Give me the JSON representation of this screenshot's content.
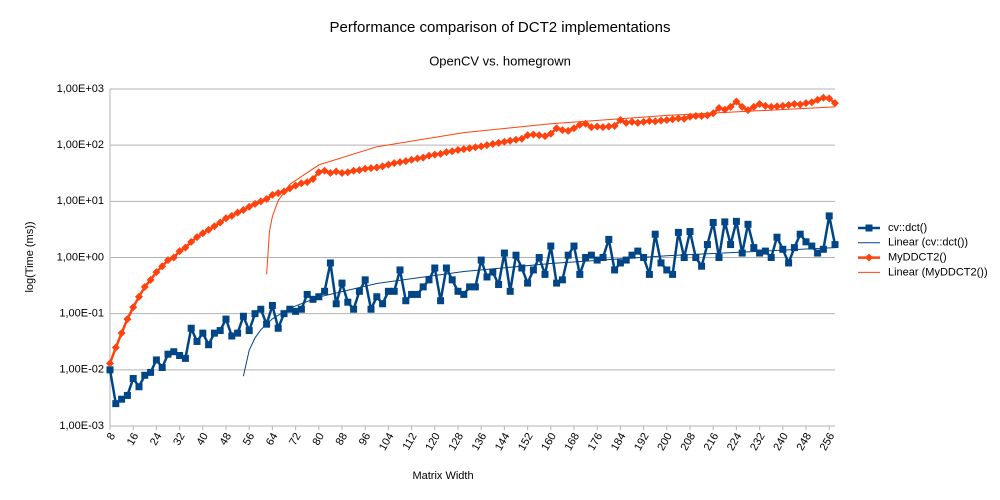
{
  "chart_data": {
    "type": "line",
    "title": "Performance comparison of DCT2 implementations",
    "subtitle": "OpenCV vs. homegrown",
    "x_label": "Matrix Width",
    "y_label": "log(Time (ms))",
    "log_y": true,
    "grid": true,
    "legend": "right",
    "xlim": [
      8,
      258
    ],
    "xticks": [
      8,
      16,
      24,
      32,
      40,
      48,
      56,
      64,
      72,
      80,
      88,
      96,
      104,
      112,
      120,
      128,
      136,
      144,
      152,
      160,
      168,
      176,
      184,
      192,
      200,
      208,
      216,
      224,
      232,
      240,
      248,
      256
    ],
    "ylim": [
      0.001,
      1000
    ],
    "yticks": [
      {
        "value": 0.001,
        "label": "1,00E-03"
      },
      {
        "value": 0.01,
        "label": "1,00E-02"
      },
      {
        "value": 0.1,
        "label": "1,00E-01"
      },
      {
        "value": 1,
        "label": "1,00E+00"
      },
      {
        "value": 10,
        "label": "1,00E+01"
      },
      {
        "value": 100,
        "label": "1,00E+02"
      },
      {
        "value": 1000,
        "label": "1,00E+03"
      }
    ],
    "x": [
      8,
      10,
      12,
      14,
      16,
      18,
      20,
      22,
      24,
      26,
      28,
      30,
      32,
      34,
      36,
      38,
      40,
      42,
      44,
      46,
      48,
      50,
      52,
      54,
      56,
      58,
      60,
      62,
      64,
      66,
      68,
      70,
      72,
      74,
      76,
      78,
      80,
      82,
      84,
      86,
      88,
      90,
      92,
      94,
      96,
      98,
      100,
      102,
      104,
      106,
      108,
      110,
      112,
      114,
      116,
      118,
      120,
      122,
      124,
      126,
      128,
      130,
      132,
      134,
      136,
      138,
      140,
      142,
      144,
      146,
      148,
      150,
      152,
      154,
      156,
      158,
      160,
      162,
      164,
      166,
      168,
      170,
      172,
      174,
      176,
      178,
      180,
      182,
      184,
      186,
      188,
      190,
      192,
      194,
      196,
      198,
      200,
      202,
      204,
      206,
      208,
      210,
      212,
      214,
      216,
      218,
      220,
      222,
      224,
      226,
      228,
      230,
      232,
      234,
      236,
      238,
      240,
      242,
      244,
      246,
      248,
      250,
      252,
      254,
      256,
      258
    ],
    "series": [
      {
        "name": "cv::dct()",
        "color": "#004586",
        "marker": "square",
        "values": [
          0.01,
          0.0025,
          0.003,
          0.0035,
          0.007,
          0.005,
          0.008,
          0.009,
          0.015,
          0.011,
          0.019,
          0.021,
          0.018,
          0.016,
          0.055,
          0.032,
          0.045,
          0.028,
          0.045,
          0.05,
          0.08,
          0.04,
          0.045,
          0.09,
          0.05,
          0.1,
          0.12,
          0.065,
          0.14,
          0.055,
          0.1,
          0.12,
          0.11,
          0.12,
          0.22,
          0.18,
          0.2,
          0.25,
          0.8,
          0.15,
          0.35,
          0.16,
          0.12,
          0.25,
          0.4,
          0.12,
          0.2,
          0.15,
          0.25,
          0.25,
          0.6,
          0.17,
          0.22,
          0.22,
          0.3,
          0.4,
          0.65,
          0.17,
          0.65,
          0.4,
          0.25,
          0.22,
          0.3,
          0.3,
          0.9,
          0.45,
          0.55,
          0.33,
          1.2,
          0.25,
          1.1,
          0.65,
          0.35,
          0.6,
          1.0,
          0.5,
          1.6,
          0.35,
          0.4,
          1.1,
          1.6,
          0.5,
          1.0,
          1.1,
          0.9,
          1.0,
          2.1,
          0.6,
          0.8,
          0.9,
          1.1,
          1.3,
          1.0,
          0.5,
          2.6,
          0.8,
          0.6,
          0.5,
          2.8,
          1.0,
          2.9,
          1.0,
          0.7,
          1.7,
          4.2,
          1.0,
          4.3,
          1.7,
          4.4,
          1.2,
          3.9,
          1.5,
          1.2,
          1.3,
          1.0,
          2.3,
          1.4,
          0.8,
          1.5,
          2.6,
          1.9,
          1.6,
          1.2,
          1.4,
          5.5,
          1.7
        ]
      },
      {
        "name": "Linear (cv::dct())",
        "color": "#004586",
        "x": [
          54,
          56,
          58,
          60,
          64,
          70,
          80,
          100,
          130,
          160,
          200,
          258
        ],
        "values": [
          0.0077,
          0.0224,
          0.037,
          0.0516,
          0.081,
          0.125,
          0.198,
          0.344,
          0.563,
          0.783,
          1.075,
          1.499
        ]
      },
      {
        "name": "MyDDCT2()",
        "color": "#ff420e",
        "marker": "diamond",
        "values": [
          0.013,
          0.025,
          0.045,
          0.08,
          0.13,
          0.2,
          0.3,
          0.4,
          0.55,
          0.7,
          0.9,
          1.0,
          1.3,
          1.5,
          1.9,
          2.3,
          2.7,
          3.1,
          3.6,
          4.2,
          5,
          5.5,
          6.3,
          7,
          8,
          9,
          10,
          11,
          13,
          14,
          15,
          17,
          19,
          21,
          22,
          25,
          33,
          35,
          32,
          34,
          32,
          33,
          35,
          36,
          38,
          39,
          40,
          42,
          45,
          48,
          50,
          52,
          55,
          58,
          60,
          65,
          68,
          70,
          75,
          78,
          82,
          85,
          88,
          92,
          95,
          100,
          105,
          110,
          115,
          120,
          125,
          130,
          150,
          155,
          150,
          145,
          160,
          200,
          185,
          180,
          200,
          230,
          240,
          210,
          215,
          210,
          215,
          220,
          280,
          250,
          260,
          250,
          260,
          270,
          265,
          275,
          280,
          290,
          300,
          295,
          320,
          330,
          330,
          340,
          370,
          460,
          430,
          480,
          600,
          480,
          420,
          480,
          540,
          500,
          480,
          490,
          500,
          520,
          540,
          530,
          560,
          580,
          640,
          700,
          680,
          560
        ]
      },
      {
        "name": "Linear (MyDDCT2())",
        "color": "#ff420e",
        "x": [
          62,
          63,
          64,
          66,
          70,
          80,
          100,
          130,
          160,
          200,
          258
        ],
        "values": [
          0.5,
          2.95,
          5.4,
          10.3,
          20.1,
          44.6,
          93.6,
          167.1,
          240.6,
          338.6,
          480.7
        ]
      }
    ]
  }
}
